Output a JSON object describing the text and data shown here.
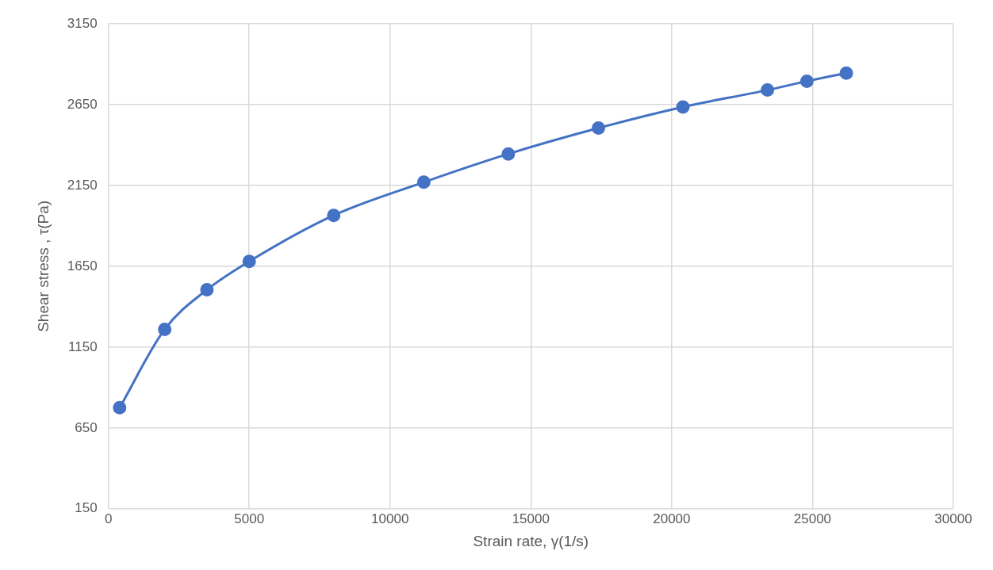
{
  "chart_data": {
    "type": "line",
    "xlabel": "Strain rate, γ(1/s)",
    "ylabel": "Shear stress , τ(Pa)",
    "x": [
      400,
      2000,
      3500,
      5000,
      8000,
      11200,
      14200,
      17400,
      20400,
      23400,
      24800,
      26200
    ],
    "series": [
      {
        "color": "#4472c4",
        "values": [
          775,
          1260,
          1505,
          1680,
          1965,
          2170,
          2345,
          2505,
          2635,
          2740,
          2795,
          2845
        ]
      }
    ],
    "xlim": [
      0,
      30000
    ],
    "xticks": [
      0,
      5000,
      10000,
      15000,
      20000,
      25000,
      30000
    ],
    "ylim": [
      150,
      3150
    ],
    "yticks": [
      150,
      650,
      1150,
      1650,
      2150,
      2650,
      3150
    ],
    "grid": true,
    "legend": false,
    "marker": "circle",
    "line_style": "solid"
  }
}
